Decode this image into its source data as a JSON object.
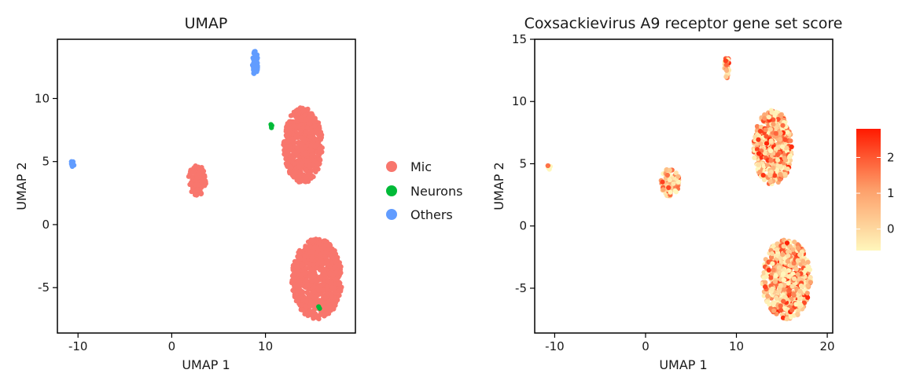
{
  "chart_data": [
    {
      "type": "scatter",
      "title": "UMAP",
      "xlabel": "UMAP 1",
      "ylabel": "UMAP 2",
      "xlim": [
        -12.2,
        19.6
      ],
      "ylim": [
        -8.6,
        14.7
      ],
      "xticks": [
        -10,
        0,
        10
      ],
      "yticks": [
        -5,
        0,
        5,
        10
      ],
      "xtick_labels": [
        "-10",
        "0",
        "10"
      ],
      "ytick_labels": [
        "-5",
        "0",
        "5",
        "10"
      ],
      "grid": false,
      "legend_position": "right",
      "color_by": "cell type",
      "legend": [
        {
          "label": "Mic",
          "color": "#F8766D"
        },
        {
          "label": "Neurons",
          "color": "#00BA38"
        },
        {
          "label": "Others",
          "color": "#619CFF"
        }
      ],
      "clusters": [
        {
          "label": "Mic",
          "cx": 14.0,
          "cy": 6.3,
          "rx": 2.1,
          "ry": 3.0,
          "n": 700
        },
        {
          "label": "Mic",
          "cx": 2.7,
          "cy": 3.5,
          "rx": 1.0,
          "ry": 1.2,
          "n": 120
        },
        {
          "label": "Mic",
          "cx": 15.5,
          "cy": -4.3,
          "rx": 2.7,
          "ry": 3.2,
          "n": 800
        },
        {
          "label": "Others",
          "cx": 8.9,
          "cy": 12.8,
          "rx": 0.3,
          "ry": 1.0,
          "n": 40
        },
        {
          "label": "Others",
          "cx": -10.6,
          "cy": 4.8,
          "rx": 0.2,
          "ry": 0.25,
          "n": 15
        },
        {
          "label": "Neurons",
          "cx": 10.6,
          "cy": 7.8,
          "rx": 0.15,
          "ry": 0.15,
          "n": 4
        },
        {
          "label": "Neurons",
          "cx": 15.7,
          "cy": -6.6,
          "rx": 0.1,
          "ry": 0.1,
          "n": 2
        }
      ]
    },
    {
      "type": "scatter",
      "title": "Coxsackievirus A9 receptor gene set score",
      "xlabel": "UMAP 1",
      "ylabel": "UMAP 2",
      "xlim": [
        -12.2,
        20.6
      ],
      "ylim": [
        -8.6,
        15.0
      ],
      "xticks": [
        -10,
        0,
        10,
        20
      ],
      "yticks": [
        -5,
        0,
        5,
        10,
        15
      ],
      "xtick_labels": [
        "-10",
        "0",
        "10",
        "20"
      ],
      "ytick_labels": [
        "-5",
        "0",
        "5",
        "10",
        "15"
      ],
      "grid": false,
      "legend_position": "right",
      "color_by": "gene set score",
      "colorbar": {
        "min": -0.6,
        "max": 2.8,
        "ticks": [
          0,
          1,
          2
        ],
        "tick_labels": [
          "0",
          "1",
          "2"
        ],
        "low_color": "#FFF7BC",
        "mid_color": "#FD9F6A",
        "high_color": "#FF1A00"
      },
      "clusters": [
        {
          "cx": 14.0,
          "cy": 6.3,
          "rx": 2.1,
          "ry": 3.0,
          "n": 500
        },
        {
          "cx": 2.7,
          "cy": 3.5,
          "rx": 1.0,
          "ry": 1.2,
          "n": 90
        },
        {
          "cx": 15.5,
          "cy": -4.3,
          "rx": 2.7,
          "ry": 3.2,
          "n": 600
        },
        {
          "cx": 8.9,
          "cy": 12.8,
          "rx": 0.3,
          "ry": 1.0,
          "n": 25
        },
        {
          "cx": -10.6,
          "cy": 4.8,
          "rx": 0.2,
          "ry": 0.25,
          "n": 6
        }
      ]
    }
  ]
}
